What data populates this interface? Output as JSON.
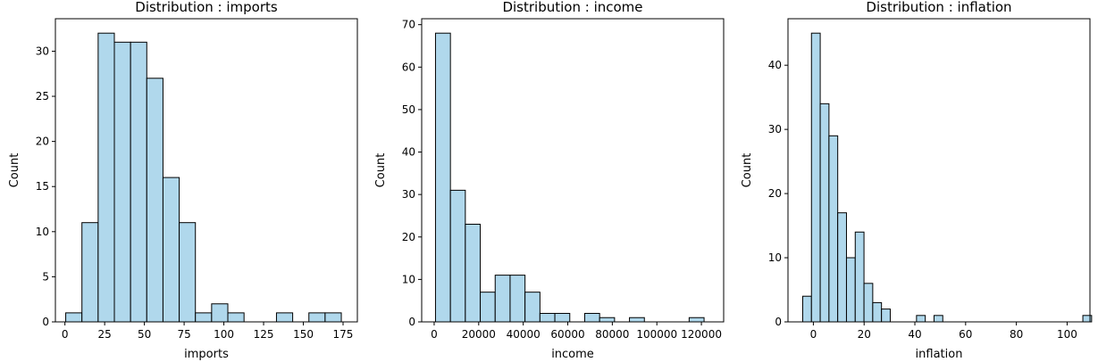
{
  "chart_data": [
    {
      "type": "bar",
      "title": "Distribution : imports",
      "xlabel": "imports",
      "ylabel": "Count",
      "xlim": [
        -6,
        184
      ],
      "ylim": [
        0,
        33.6
      ],
      "xticks": [
        0,
        25,
        50,
        75,
        100,
        125,
        150,
        175
      ],
      "yticks": [
        0,
        5,
        10,
        15,
        20,
        25,
        30
      ],
      "bin_start": 0.5,
      "bin_width": 10.2,
      "values": [
        1,
        11,
        32,
        31,
        31,
        27,
        16,
        11,
        1,
        2,
        1,
        0,
        0,
        1,
        0,
        1,
        1
      ],
      "bar_color": "#b0d8ec",
      "edge_color": "#000000",
      "grid": false,
      "legend": "none"
    },
    {
      "type": "bar",
      "title": "Distribution : income",
      "xlabel": "income",
      "ylabel": "Count",
      "xlim": [
        -5600,
        130000
      ],
      "ylim": [
        0,
        71.4
      ],
      "xticks": [
        0,
        20000,
        40000,
        60000,
        80000,
        100000,
        120000
      ],
      "yticks": [
        0,
        10,
        20,
        30,
        40,
        50,
        60,
        70
      ],
      "bin_start": 600,
      "bin_width": 6700,
      "values": [
        68,
        31,
        23,
        7,
        11,
        11,
        7,
        2,
        2,
        0,
        2,
        1,
        0,
        1,
        0,
        0,
        0,
        1
      ],
      "bar_color": "#b0d8ec",
      "edge_color": "#000000",
      "grid": false,
      "legend": "none"
    },
    {
      "type": "bar",
      "title": "Distribution : inflation",
      "xlabel": "inflation",
      "ylabel": "Count",
      "xlim": [
        -10,
        109
      ],
      "ylim": [
        0,
        47.25
      ],
      "xticks": [
        0,
        20,
        40,
        60,
        80,
        100
      ],
      "yticks": [
        0,
        10,
        20,
        30,
        40
      ],
      "bin_start": -4.2,
      "bin_width": 3.45,
      "values": [
        4,
        45,
        34,
        29,
        17,
        10,
        14,
        6,
        3,
        2,
        0,
        0,
        0,
        1,
        0,
        1,
        0,
        0,
        0,
        0,
        0,
        0,
        0,
        0,
        0,
        0,
        0,
        0,
        0,
        0,
        0,
        0,
        1
      ],
      "bar_color": "#b0d8ec",
      "edge_color": "#000000",
      "grid": false,
      "legend": "none"
    }
  ]
}
